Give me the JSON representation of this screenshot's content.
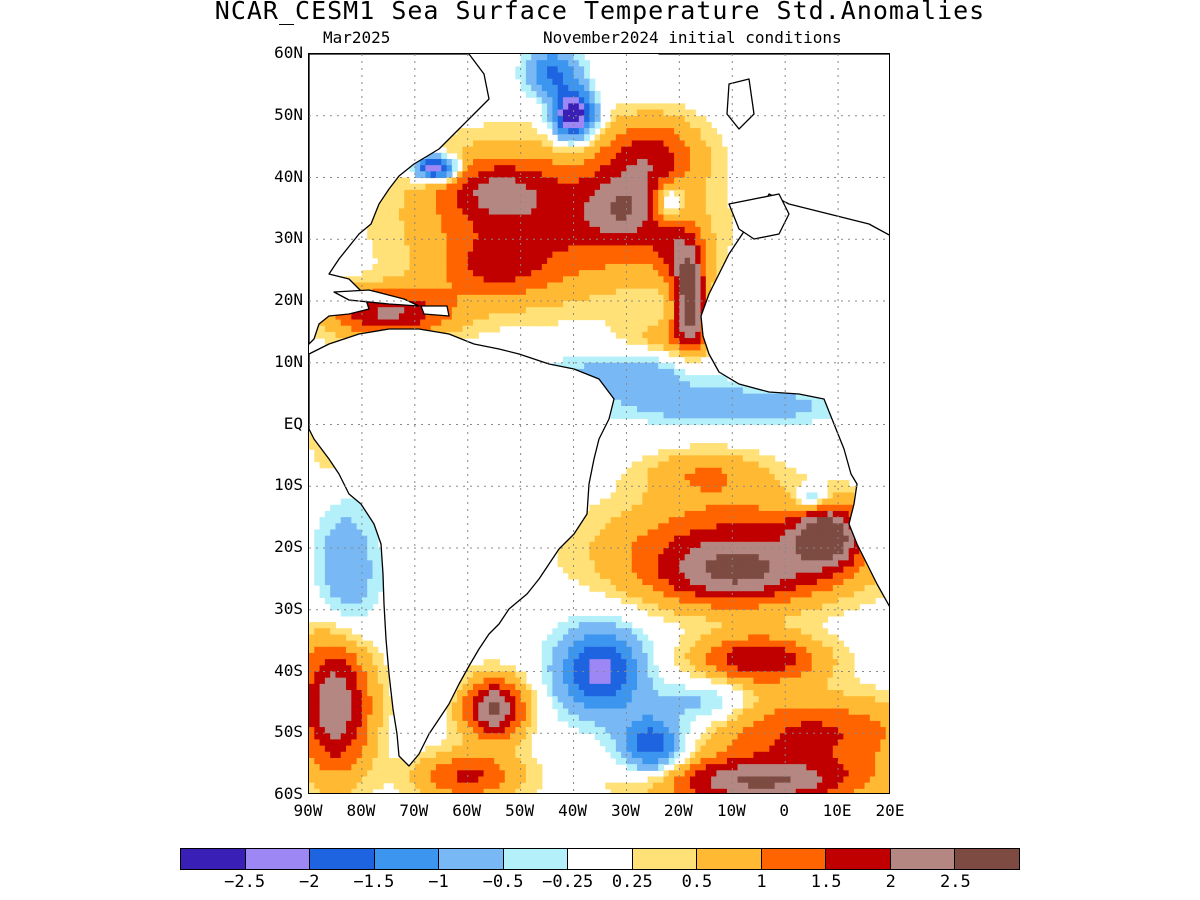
{
  "title": "NCAR_CESM1 Sea Surface Temperature Std.Anomalies",
  "subtitle_left": "Mar2025",
  "subtitle_right": "November2024 initial conditions",
  "lat_labels": [
    "60N",
    "50N",
    "40N",
    "30N",
    "20N",
    "10N",
    "EQ",
    "10S",
    "20S",
    "30S",
    "40S",
    "50S",
    "60S"
  ],
  "lon_labels": [
    "90W",
    "80W",
    "70W",
    "60W",
    "50W",
    "40W",
    "30W",
    "20W",
    "10W",
    "0",
    "10E",
    "20E"
  ],
  "colorbar": {
    "colors": [
      "#3a1fb7",
      "#9d87f5",
      "#1e64e0",
      "#3c96f0",
      "#78b9f5",
      "#b4f0fa",
      "#ffffff",
      "#ffe178",
      "#ffb932",
      "#ff6400",
      "#c00000",
      "#b48782",
      "#7d4b41"
    ],
    "labels": [
      "−2.5",
      "−2",
      "−1.5",
      "−1",
      "−0.5",
      "−0.25",
      "0.25",
      "0.5",
      "1",
      "1.5",
      "2",
      "2.5"
    ]
  },
  "map_data": {
    "region": {
      "lon_min": -90,
      "lon_max": 20,
      "lat_min": -60,
      "lat_max": 60
    },
    "units": "standardized anomaly",
    "levels": [
      -2.5,
      -2,
      -1.5,
      -1,
      -0.5,
      -0.25,
      0.25,
      0.5,
      1,
      1.5,
      2,
      2.5
    ],
    "anomaly_blobs": [
      {
        "lon": -45,
        "lat": 33,
        "amp": 1.6,
        "rlon": 25,
        "rlat": 12
      },
      {
        "lon": -30,
        "lat": 35,
        "amp": 1.4,
        "rlon": 8,
        "rlat": 6
      },
      {
        "lon": -25,
        "lat": 44,
        "amp": 1.4,
        "rlon": 9,
        "rlat": 6
      },
      {
        "lon": -55,
        "lat": 38,
        "amp": 1.1,
        "rlon": 10,
        "rlat": 5
      },
      {
        "lon": -55,
        "lat": 25,
        "amp": 0.9,
        "rlon": 10,
        "rlat": 5
      },
      {
        "lon": -20,
        "lat": 28,
        "amp": 1.2,
        "rlon": 5,
        "rlat": 5
      },
      {
        "lon": -18,
        "lat": 20,
        "amp": 2.8,
        "rlon": 3,
        "rlat": 7
      },
      {
        "lon": -40,
        "lat": 50,
        "amp": -3.2,
        "rlon": 4,
        "rlat": 4
      },
      {
        "lon": -44,
        "lat": 57,
        "amp": -1.6,
        "rlon": 5,
        "rlat": 4
      },
      {
        "lon": -66,
        "lat": 41.5,
        "amp": -3.0,
        "rlon": 4,
        "rlat": 2
      },
      {
        "lon": -22,
        "lat": 36,
        "amp": -1.5,
        "rlon": 3,
        "rlat": 3
      },
      {
        "lon": -30,
        "lat": 8,
        "amp": -0.8,
        "rlon": 15,
        "rlat": 4
      },
      {
        "lon": -10,
        "lat": 3,
        "amp": -0.9,
        "rlon": 20,
        "rlat": 3
      },
      {
        "lon": -20,
        "lat": 14,
        "amp": 0.8,
        "rlon": 10,
        "rlat": 3
      },
      {
        "lon": -75,
        "lat": 18,
        "amp": 2.0,
        "rlon": 12,
        "rlat": 4
      },
      {
        "lon": -85,
        "lat": 0,
        "amp": 0.8,
        "rlon": 5,
        "rlat": 8
      },
      {
        "lon": -15,
        "lat": -8,
        "amp": 0.9,
        "rlon": 12,
        "rlat": 4
      },
      {
        "lon": -8,
        "lat": -20,
        "amp": 1.8,
        "rlon": 25,
        "rlat": 8
      },
      {
        "lon": -10,
        "lat": -25,
        "amp": 1.4,
        "rlon": 15,
        "rlat": 5
      },
      {
        "lon": 8,
        "lat": -18,
        "amp": 2.2,
        "rlon": 6,
        "rlat": 5
      },
      {
        "lon": 5,
        "lat": -12,
        "amp": -1.2,
        "rlon": 3,
        "rlat": 2
      },
      {
        "lon": -35,
        "lat": -40,
        "amp": -2.2,
        "rlon": 8,
        "rlat": 7
      },
      {
        "lon": -25,
        "lat": -52,
        "amp": -2.0,
        "rlon": 6,
        "rlat": 5
      },
      {
        "lon": -15,
        "lat": -45,
        "amp": -0.8,
        "rlon": 8,
        "rlat": 4
      },
      {
        "lon": -5,
        "lat": -38,
        "amp": 2.0,
        "rlon": 12,
        "rlat": 4
      },
      {
        "lon": 5,
        "lat": -50,
        "amp": 1.6,
        "rlon": 20,
        "rlat": 6
      },
      {
        "lon": -5,
        "lat": -58,
        "amp": 2.4,
        "rlon": 20,
        "rlat": 4
      },
      {
        "lon": -85,
        "lat": -45,
        "amp": 2.5,
        "rlon": 7,
        "rlat": 12
      },
      {
        "lon": -83,
        "lat": -25,
        "amp": -1.0,
        "rlon": 6,
        "rlat": 12
      },
      {
        "lon": -55,
        "lat": -46,
        "amp": 2.6,
        "rlon": 6,
        "rlat": 5
      },
      {
        "lon": -60,
        "lat": -57,
        "amp": 1.6,
        "rlon": 10,
        "rlat": 4
      }
    ]
  }
}
